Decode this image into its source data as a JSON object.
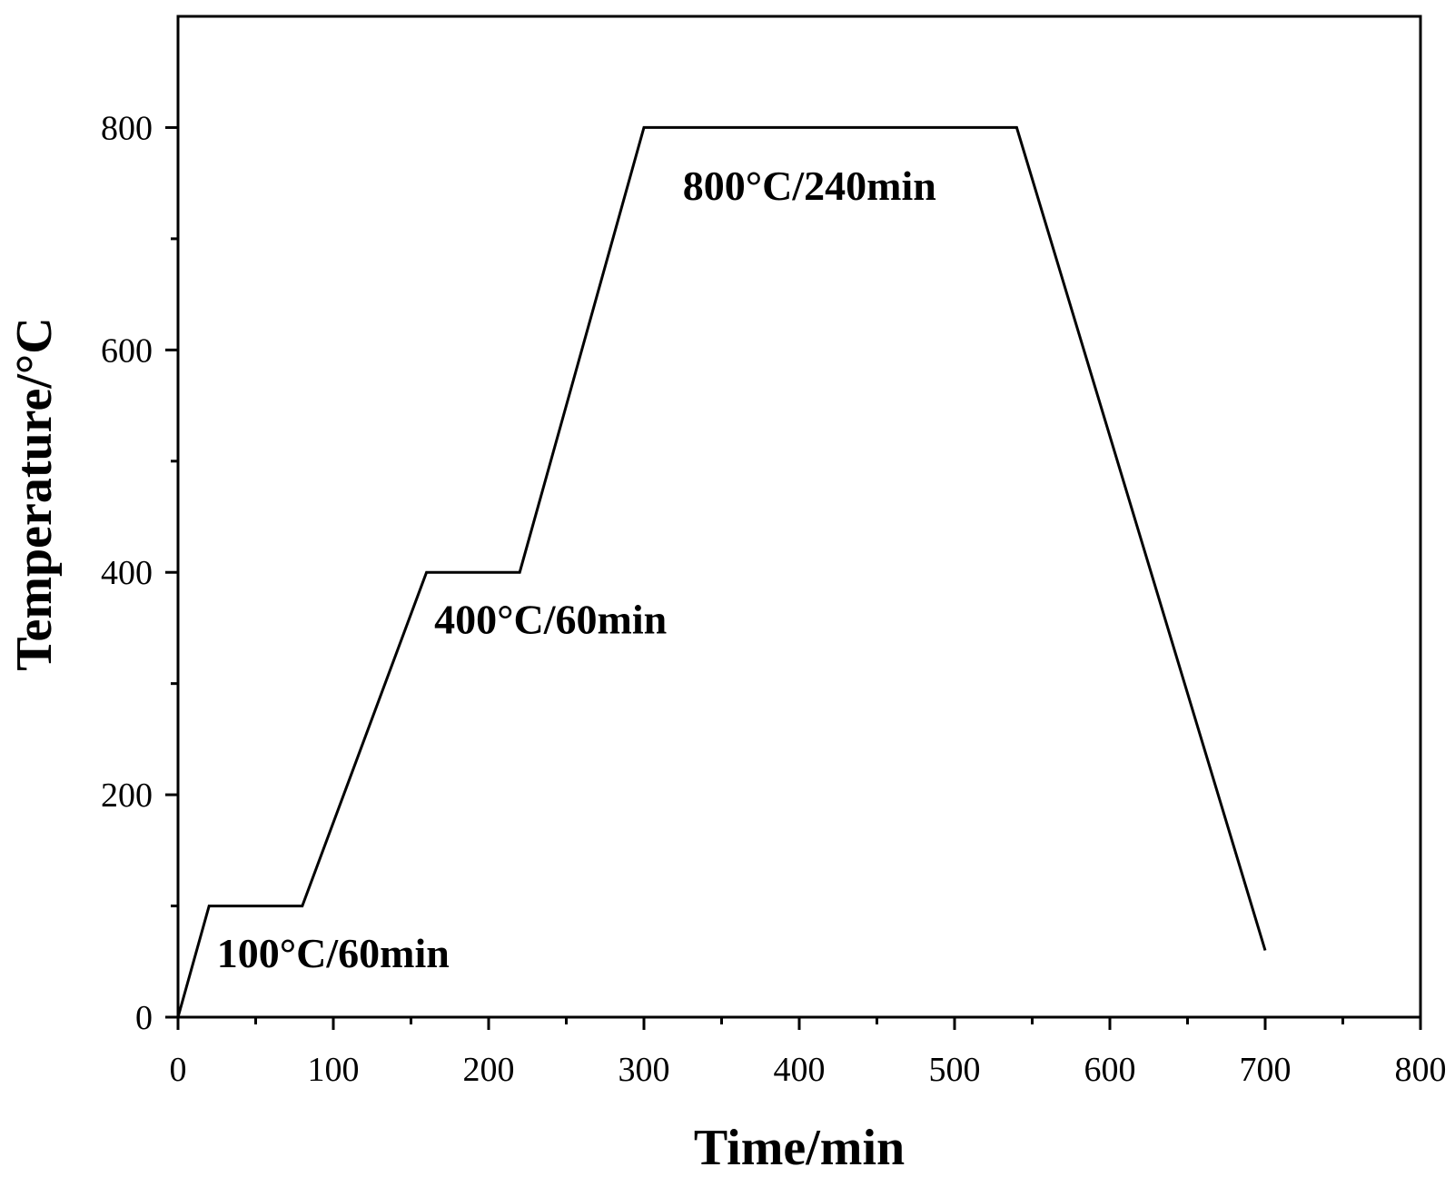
{
  "chart_data": {
    "type": "line",
    "title": "",
    "xlabel": "Time/min",
    "ylabel": "Temperature/°C",
    "xlim": [
      0,
      800
    ],
    "ylim": [
      0,
      900
    ],
    "x_ticks": [
      0,
      100,
      200,
      300,
      400,
      500,
      600,
      700,
      800
    ],
    "y_ticks": [
      0,
      200,
      400,
      600,
      800
    ],
    "grid": false,
    "legend": "none",
    "series": [
      {
        "color": "#000000",
        "x": [
          0,
          20,
          80,
          160,
          220,
          300,
          540,
          700
        ],
        "y": [
          0,
          100,
          100,
          400,
          400,
          800,
          800,
          60
        ]
      }
    ],
    "annotations": [
      {
        "text": "100°C/60min",
        "x": 25,
        "y": 45
      },
      {
        "text": "400°C/60min",
        "x": 165,
        "y": 345
      },
      {
        "text": "800°C/240min",
        "x": 325,
        "y": 735
      }
    ]
  }
}
